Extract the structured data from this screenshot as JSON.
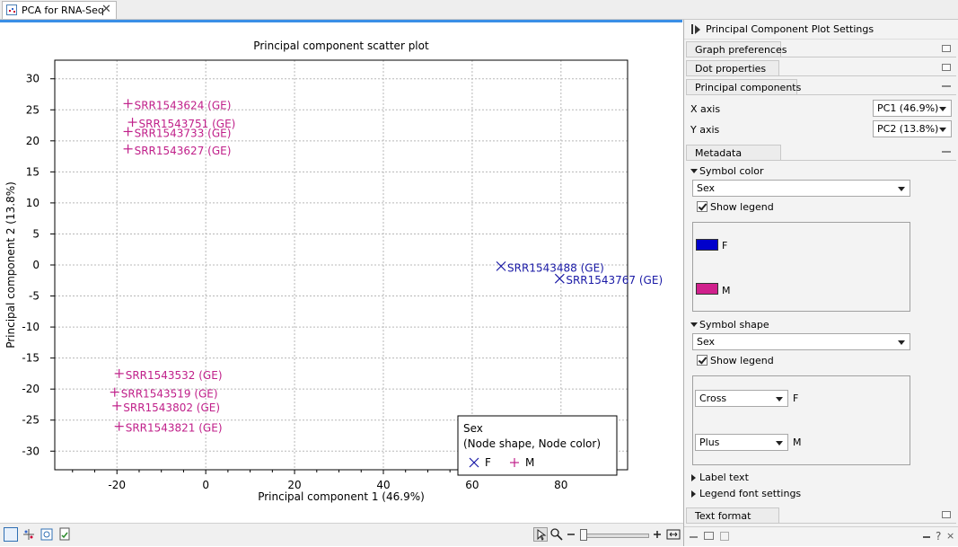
{
  "tab": {
    "title": "PCA for RNA-Seq",
    "close": "✕"
  },
  "chart_data": {
    "type": "scatter",
    "title": "Principal component scatter plot",
    "xlabel": "Principal component 1 (46.9%)",
    "ylabel": "Principal component 2 (13.8%)",
    "xlim": [
      -34,
      95
    ],
    "ylim": [
      -33,
      33
    ],
    "xticks": [
      -20,
      0,
      20,
      40,
      60,
      80
    ],
    "yticks": [
      30,
      25,
      20,
      15,
      10,
      5,
      0,
      -5,
      -10,
      -15,
      -20,
      -25,
      -30
    ],
    "grid": true,
    "series": [
      {
        "name": "F",
        "marker": "cross",
        "color": "#1a1aa6",
        "points": [
          {
            "label": "SRR1543488 (GE)",
            "x": 66.5,
            "y": -0.2
          },
          {
            "label": "SRR1543767 (GE)",
            "x": 79.7,
            "y": -2.2
          }
        ]
      },
      {
        "name": "M",
        "marker": "plus",
        "color": "#c0208a",
        "points": [
          {
            "label": "SRR1543624 (GE)",
            "x": -17.5,
            "y": 26.0
          },
          {
            "label": "SRR1543751 (GE)",
            "x": -16.5,
            "y": 23.0
          },
          {
            "label": "SRR1543733 (GE)",
            "x": -17.5,
            "y": 21.5
          },
          {
            "label": "SRR1543627 (GE)",
            "x": -17.5,
            "y": 18.7
          },
          {
            "label": "SRR1543532 (GE)",
            "x": -19.5,
            "y": -17.5
          },
          {
            "label": "SRR1543519 (GE)",
            "x": -20.5,
            "y": -20.5
          },
          {
            "label": "SRR1543802 (GE)",
            "x": -20.0,
            "y": -22.7
          },
          {
            "label": "SRR1543821 (GE)",
            "x": -19.5,
            "y": -26.0
          }
        ]
      }
    ],
    "legend": {
      "placement": "bottom-right",
      "title": "Sex",
      "subtitle": "(Node shape, Node color)",
      "entries": [
        {
          "label": "F",
          "marker": "cross",
          "color": "#1a1aa6"
        },
        {
          "label": "M",
          "marker": "plus",
          "color": "#c0208a"
        }
      ]
    }
  },
  "panel": {
    "title": "Principal Component Plot Settings",
    "graph_preferences": "Graph preferences",
    "dot_properties": "Dot properties",
    "principal_components": "Principal components",
    "x_axis_label": "X axis",
    "x_axis_value": "PC1 (46.9%)",
    "y_axis_label": "Y axis",
    "y_axis_value": "PC2 (13.8%)",
    "metadata": "Metadata",
    "symbol_color": "Symbol color",
    "symbol_color_value": "Sex",
    "show_legend": "Show legend",
    "color_legend": [
      {
        "label": "F",
        "color": "#0000cc"
      },
      {
        "label": "M",
        "color": "#d0208c"
      }
    ],
    "symbol_shape": "Symbol shape",
    "symbol_shape_value": "Sex",
    "shape_legend": [
      {
        "shape": "Cross",
        "label": "F"
      },
      {
        "shape": "Plus",
        "label": "M"
      }
    ],
    "label_text": "Label text",
    "legend_font_settings": "Legend font settings",
    "text_format": "Text format"
  }
}
